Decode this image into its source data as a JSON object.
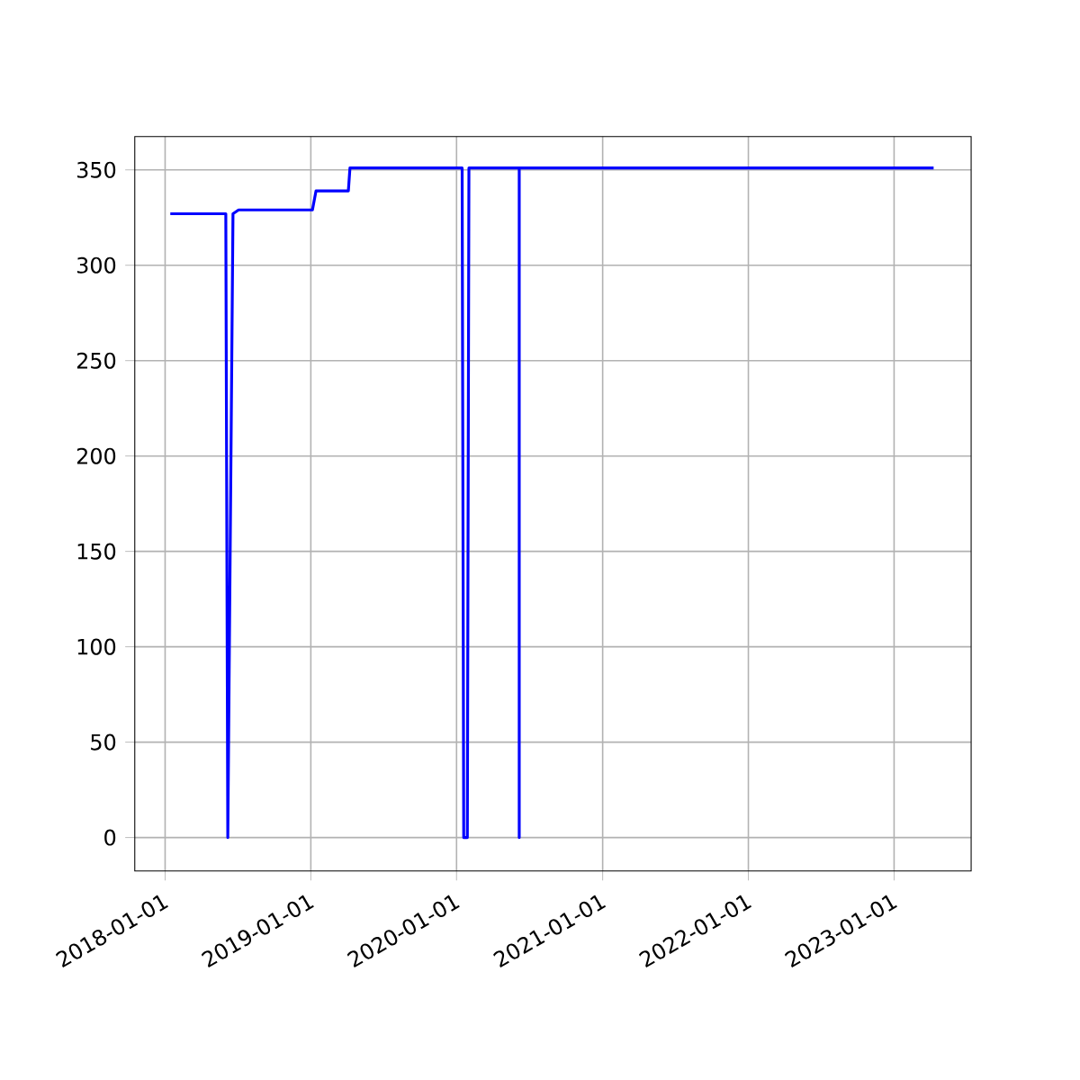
{
  "chart_data": {
    "type": "line",
    "x": [
      "2018-01-14",
      "2018-06-02",
      "2018-06-07",
      "2018-06-20",
      "2018-07-04",
      "2019-01-05",
      "2019-01-14",
      "2019-04-05",
      "2019-04-09",
      "2020-01-15",
      "2020-01-19",
      "2020-01-28",
      "2020-02-01",
      "2020-06-06",
      "2020-06-06",
      "2020-06-06",
      "2023-04-10"
    ],
    "series": [
      {
        "color": "#0000ff",
        "values": [
          327,
          327,
          0,
          327,
          329,
          329,
          339,
          339,
          351,
          351,
          0,
          0,
          351,
          351,
          0,
          351,
          351
        ]
      }
    ],
    "xlim": [
      "2017-10-17",
      "2023-07-13"
    ],
    "ylim": [
      -17.5,
      367.5
    ],
    "xticks": [
      "2018-01-01",
      "2019-01-01",
      "2020-01-01",
      "2021-01-01",
      "2022-01-01",
      "2023-01-01"
    ],
    "yticks": [
      0,
      50,
      100,
      150,
      200,
      250,
      300,
      350
    ],
    "grid": true
  }
}
